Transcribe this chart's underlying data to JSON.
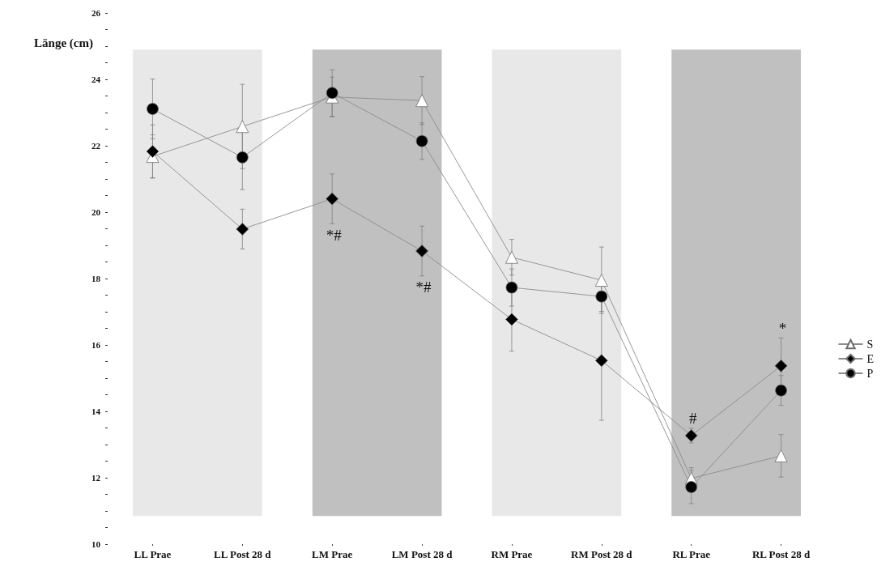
{
  "chart_data": {
    "type": "line",
    "ylabel": "Länge (cm)",
    "categories": [
      "LL Prae",
      "LL Post 28 d",
      "LM Prae",
      "LM Post 28 d",
      "RM Prae",
      "RM Post 28 d",
      "RL Prae",
      "RL Post 28 d"
    ],
    "series": [
      {
        "name": "S",
        "color": "#ffffff",
        "marker": "triangle",
        "values": [
          21.68,
          22.58,
          23.47,
          23.36,
          18.64,
          17.95,
          11.98,
          12.66
        ],
        "errors": [
          0.65,
          1.27,
          0.6,
          0.72,
          0.54,
          1.0,
          0.32,
          0.64
        ]
      },
      {
        "name": "E",
        "color": "#000000",
        "marker": "diamond",
        "values": [
          21.83,
          19.49,
          20.4,
          18.83,
          16.77,
          15.53,
          13.27,
          15.37
        ],
        "errors": [
          0.8,
          0.6,
          0.75,
          0.75,
          0.96,
          1.8,
          0.22,
          0.84
        ]
      },
      {
        "name": "P",
        "color": "#000000",
        "marker": "circle",
        "values": [
          23.11,
          21.65,
          23.59,
          22.14,
          17.73,
          17.46,
          11.72,
          14.63
        ],
        "errors": [
          0.9,
          0.97,
          0.7,
          0.55,
          0.56,
          0.45,
          0.5,
          0.45
        ]
      }
    ],
    "ylim": [
      10,
      26
    ],
    "yticks": [
      10,
      {
        "value": 10.5,
        "label": null
      },
      {
        "value": 11,
        "label": null
      },
      {
        "value": 11.5,
        "label": null
      },
      12,
      {
        "value": 12.5,
        "label": null
      },
      {
        "value": 13,
        "label": null
      },
      {
        "value": 13.5,
        "label": null
      },
      14,
      {
        "value": 14.5,
        "label": null
      },
      {
        "value": 15,
        "label": null
      },
      {
        "value": 15.5,
        "label": null
      },
      16,
      {
        "value": 16.5,
        "label": null
      },
      {
        "value": 17,
        "label": null
      },
      {
        "value": 17.5,
        "label": null
      },
      18,
      {
        "value": 18.5,
        "label": null
      },
      {
        "value": 19,
        "label": null
      },
      {
        "value": 19.5,
        "label": null
      },
      20,
      {
        "value": 20.5,
        "label": null
      },
      {
        "value": 21,
        "label": null
      },
      {
        "value": 21.5,
        "label": null
      },
      22,
      {
        "value": 22.5,
        "label": null
      },
      {
        "value": 23,
        "label": null
      },
      {
        "value": 23.5,
        "label": null
      },
      24,
      {
        "value": 24.5,
        "label": null
      },
      {
        "value": 25,
        "label": null
      },
      {
        "value": 25.5,
        "label": null
      },
      26
    ],
    "bands": [
      {
        "axis": "x",
        "from": "LL Prae",
        "to": "LL Post 28 d",
        "color": "#e8e8e8"
      },
      {
        "axis": "x",
        "from": "LM Prae",
        "to": "LM Post 28 d",
        "color": "#c0c0c0"
      },
      {
        "axis": "x",
        "from": "RM Prae",
        "to": "RM Post 28 d",
        "color": "#e8e8e8"
      },
      {
        "axis": "x",
        "from": "RL Prae",
        "to": "RL Post 28 d",
        "color": "#c0c0c0"
      }
    ],
    "annotations": [
      {
        "text": "*#",
        "x": "LM Prae",
        "y": 20.4
      },
      {
        "text": "*#",
        "x": "LM Post 28 d",
        "y": 18.83
      },
      {
        "text": "#",
        "x": "RL Prae",
        "y": 13.27
      },
      {
        "text": "*",
        "x": "RL Post 28 d",
        "y": 15.37
      }
    ],
    "legend": "right"
  }
}
